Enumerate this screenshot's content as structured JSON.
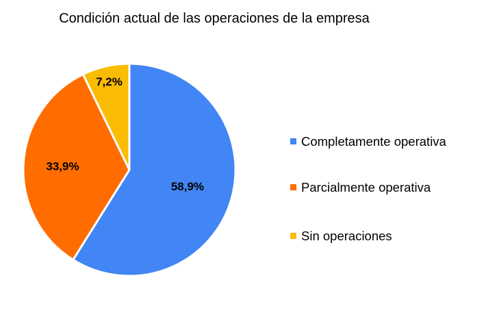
{
  "chart_data": {
    "type": "pie",
    "title": "Condición actual de las operaciones de la empresa",
    "slices": [
      {
        "label": "Completamente operativa",
        "value": 58.9,
        "display": "58,9%",
        "color": "#4285F4"
      },
      {
        "label": "Parcialmente operativa",
        "value": 33.9,
        "display": "33,9%",
        "color": "#FF6D01"
      },
      {
        "label": "Sin operaciones",
        "value": 7.2,
        "display": "7,2%",
        "color": "#FBBC04"
      }
    ],
    "legend_position": "right"
  }
}
